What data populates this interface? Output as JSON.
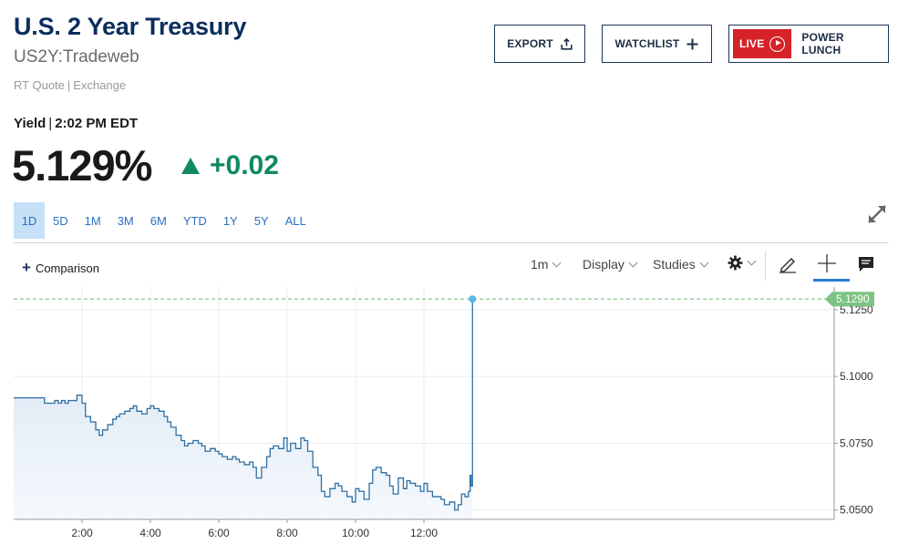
{
  "header": {
    "title": "U.S. 2 Year Treasury",
    "symbol": "US2Y:Tradeweb",
    "quote_type": "RT Quote",
    "quote_sep": "|",
    "exchange": "Exchange"
  },
  "actions": {
    "export_label": "EXPORT",
    "watchlist_label": "WATCHLIST",
    "live_label": "LIVE",
    "live_show": "POWER LUNCH"
  },
  "quote": {
    "yield_label": "Yield",
    "sep": "|",
    "time": "2:02 PM EDT",
    "price": "5.129%",
    "change": "+0.02",
    "direction": "up",
    "up_color": "#0f8a5f"
  },
  "ranges": [
    "1D",
    "5D",
    "1M",
    "3M",
    "6M",
    "YTD",
    "1Y",
    "5Y",
    "ALL"
  ],
  "active_range": "1D",
  "toolbar": {
    "comparison_label": "Comparison",
    "interval_label": "1m",
    "display_label": "Display",
    "studies_label": "Studies",
    "icons": [
      "gear-icon",
      "pencil-icon",
      "crosshair-icon",
      "annotation-icon",
      "expand-icon"
    ]
  },
  "chart_data": {
    "type": "area",
    "x_tick_labels": [
      "2:00",
      "4:00",
      "6:00",
      "8:00",
      "10:00",
      "12:00"
    ],
    "x_ticks_hours": [
      2,
      4,
      6,
      8,
      10,
      12
    ],
    "xlim_hours": [
      0,
      24
    ],
    "y_ticks": [
      "5.0500",
      "5.0750",
      "5.1000",
      "5.1250"
    ],
    "y_tick_values": [
      5.05,
      5.075,
      5.1,
      5.125
    ],
    "ylim": [
      5.0465,
      5.1335
    ],
    "current_value": 5.129,
    "current_label": "5.1290",
    "line_color": "#2f6fa3",
    "current_color": "#7dc383",
    "grid": true,
    "series": [
      {
        "x": [
          0,
          0.3,
          0.6,
          0.9,
          1.2,
          1.3,
          1.4,
          1.5,
          1.6,
          1.7,
          1.85,
          2.0,
          2.1,
          2.25,
          2.4,
          2.5,
          2.6,
          2.75,
          2.9,
          3.0,
          3.1,
          3.25,
          3.4,
          3.5,
          3.6,
          3.75,
          3.9,
          4.0,
          4.1,
          4.25,
          4.4,
          4.5,
          4.6,
          4.75,
          4.9,
          5.0,
          5.1,
          5.25,
          5.4,
          5.5,
          5.6,
          5.75,
          5.9,
          6.0,
          6.1,
          6.25,
          6.4,
          6.5,
          6.6,
          6.75,
          6.9,
          7.0,
          7.1,
          7.25,
          7.4,
          7.5,
          7.6,
          7.75,
          7.9,
          8.0,
          8.1,
          8.25,
          8.4,
          8.5,
          8.6,
          8.75,
          8.9,
          9.0,
          9.1,
          9.25,
          9.4,
          9.5,
          9.6,
          9.75,
          9.9,
          10.0,
          10.1,
          10.25,
          10.4,
          10.5,
          10.6,
          10.75,
          10.9,
          11.0,
          11.1,
          11.25,
          11.4,
          11.5,
          11.6,
          11.75,
          11.9,
          12.0,
          12.1,
          12.25,
          12.4,
          12.5,
          12.6,
          12.75,
          12.9,
          13.0,
          13.1,
          13.2,
          13.3,
          13.35,
          13.38,
          13.42
        ],
        "values": [
          5.092,
          5.092,
          5.092,
          5.09,
          5.091,
          5.09,
          5.091,
          5.09,
          5.091,
          5.091,
          5.093,
          5.09,
          5.085,
          5.083,
          5.08,
          5.078,
          5.08,
          5.082,
          5.084,
          5.085,
          5.086,
          5.087,
          5.088,
          5.089,
          5.087,
          5.086,
          5.088,
          5.089,
          5.088,
          5.087,
          5.085,
          5.083,
          5.081,
          5.078,
          5.076,
          5.074,
          5.075,
          5.076,
          5.075,
          5.074,
          5.072,
          5.073,
          5.072,
          5.071,
          5.07,
          5.069,
          5.07,
          5.069,
          5.068,
          5.067,
          5.068,
          5.066,
          5.062,
          5.066,
          5.07,
          5.073,
          5.074,
          5.073,
          5.077,
          5.072,
          5.075,
          5.073,
          5.077,
          5.076,
          5.072,
          5.066,
          5.063,
          5.057,
          5.055,
          5.058,
          5.06,
          5.059,
          5.057,
          5.055,
          5.053,
          5.058,
          5.057,
          5.054,
          5.06,
          5.065,
          5.066,
          5.064,
          5.063,
          5.059,
          5.056,
          5.062,
          5.058,
          5.061,
          5.06,
          5.059,
          5.057,
          5.06,
          5.057,
          5.055,
          5.055,
          5.054,
          5.052,
          5.053,
          5.05,
          5.052,
          5.056,
          5.055,
          5.057,
          5.063,
          5.059,
          5.129
        ]
      }
    ]
  }
}
